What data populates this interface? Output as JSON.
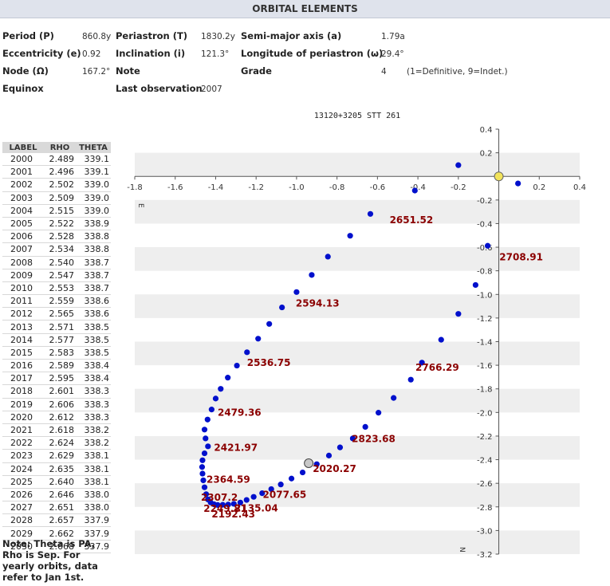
{
  "header": {
    "title": "ORBITAL ELEMENTS"
  },
  "elements": {
    "period": {
      "label": "Period (P)",
      "value": "860.8y"
    },
    "periastron": {
      "label": "Periastron (T)",
      "value": "1830.2y"
    },
    "semimajor": {
      "label": "Semi-major axis (a)",
      "value": "1.79a"
    },
    "eccentricity": {
      "label": "Eccentricity (e)",
      "value": "0.92"
    },
    "inclination": {
      "label": "Inclination (i)",
      "value": "121.3°"
    },
    "longitude": {
      "label": "Longitude of periastron (ω)",
      "value": "29.4°"
    },
    "node": {
      "label": "Node (Ω)",
      "value": "167.2°"
    },
    "note": {
      "label": "Note",
      "value": ""
    },
    "grade": {
      "label": "Grade",
      "value": "4",
      "legend": "(1=Definitive, 9=Indet.)"
    },
    "equinox": {
      "label": "Equinox",
      "value": ""
    },
    "last_obs": {
      "label": "Last observation",
      "value": "2007"
    }
  },
  "yearly": {
    "headers": [
      "LABEL",
      "RHO",
      "THETA"
    ],
    "rows": [
      [
        "2000",
        "2.489",
        "339.1"
      ],
      [
        "2001",
        "2.496",
        "339.1"
      ],
      [
        "2002",
        "2.502",
        "339.0"
      ],
      [
        "2003",
        "2.509",
        "339.0"
      ],
      [
        "2004",
        "2.515",
        "339.0"
      ],
      [
        "2005",
        "2.522",
        "338.9"
      ],
      [
        "2006",
        "2.528",
        "338.8"
      ],
      [
        "2007",
        "2.534",
        "338.8"
      ],
      [
        "2008",
        "2.540",
        "338.7"
      ],
      [
        "2009",
        "2.547",
        "338.7"
      ],
      [
        "2010",
        "2.553",
        "338.7"
      ],
      [
        "2011",
        "2.559",
        "338.6"
      ],
      [
        "2012",
        "2.565",
        "338.6"
      ],
      [
        "2013",
        "2.571",
        "338.5"
      ],
      [
        "2014",
        "2.577",
        "338.5"
      ],
      [
        "2015",
        "2.583",
        "338.5"
      ],
      [
        "2016",
        "2.589",
        "338.4"
      ],
      [
        "2017",
        "2.595",
        "338.4"
      ],
      [
        "2018",
        "2.601",
        "338.3"
      ],
      [
        "2019",
        "2.606",
        "338.3"
      ],
      [
        "2020",
        "2.612",
        "338.3"
      ],
      [
        "2021",
        "2.618",
        "338.2"
      ],
      [
        "2022",
        "2.624",
        "338.2"
      ],
      [
        "2023",
        "2.629",
        "338.1"
      ],
      [
        "2024",
        "2.635",
        "338.1"
      ],
      [
        "2025",
        "2.640",
        "338.1"
      ],
      [
        "2026",
        "2.646",
        "338.0"
      ],
      [
        "2027",
        "2.651",
        "338.0"
      ],
      [
        "2028",
        "2.657",
        "337.9"
      ],
      [
        "2029",
        "2.662",
        "337.9"
      ],
      [
        "2030",
        "2.668",
        "337.9"
      ]
    ]
  },
  "note_text": "Note: Theta is PA, Rho is Sep. For yearly orbits, data refer to Jan 1st.",
  "chart_data": {
    "type": "scatter",
    "title": "13120+3205 STT 261",
    "xlim": [
      -1.8,
      0.4
    ],
    "ylim": [
      -3.2,
      0.4
    ],
    "x_ticks": [
      -1.8,
      -1.6,
      -1.4,
      -1.2,
      -1.0,
      -0.8,
      -0.6,
      -0.4,
      -0.2,
      0.2,
      0.4
    ],
    "x_tick_labels": [
      "-1.8",
      "-1.6",
      "-1.4",
      "-1.2",
      "-1.0",
      "-0.8",
      "-0.6",
      "-0.4",
      "-0.2",
      "0.2",
      "0.4"
    ],
    "y_ticks": [
      0.4,
      0.2,
      -0.2,
      -0.4,
      -0.6,
      -0.8,
      -1.0,
      -1.2,
      -1.4,
      -1.6,
      -1.8,
      -2.0,
      -2.2,
      -2.4,
      -2.6,
      -2.8,
      -3.0,
      -3.2
    ],
    "y_tick_labels": [
      "0.4",
      "0.2",
      "-0.2",
      "-0.4",
      "-0.6",
      "-0.8",
      "-1.0",
      "-1.2",
      "-1.4",
      "-1.6",
      "-1.8",
      "-2.0",
      "-2.2",
      "-2.4",
      "-2.6",
      "-2.8",
      "-3.0",
      "-3.2"
    ],
    "direction_labels": {
      "east": "E",
      "north": "N"
    },
    "grid": "alternating horizontal bands",
    "colors": {
      "orbit": "#0010cc",
      "label": "#8b0000",
      "primary": "#f2e35a",
      "current": "#c8c8c8",
      "band": "#eeeeee"
    },
    "primary": {
      "x": 0,
      "y": 0
    },
    "current_position": {
      "x": -0.94,
      "y": -2.43
    },
    "points": [
      {
        "x": -1.438,
        "y": -2.287
      },
      {
        "x": -1.455,
        "y": -2.346
      },
      {
        "x": -1.465,
        "y": -2.405
      },
      {
        "x": -1.467,
        "y": -2.462
      },
      {
        "x": -1.465,
        "y": -2.518
      },
      {
        "x": -1.461,
        "y": -2.575
      },
      {
        "x": -1.455,
        "y": -2.634
      },
      {
        "x": -1.447,
        "y": -2.692
      },
      {
        "x": -1.438,
        "y": -2.737
      },
      {
        "x": -1.425,
        "y": -2.762
      },
      {
        "x": -1.408,
        "y": -2.778
      },
      {
        "x": -1.39,
        "y": -2.784
      },
      {
        "x": -1.365,
        "y": -2.782
      },
      {
        "x": -1.338,
        "y": -2.78
      },
      {
        "x": -1.31,
        "y": -2.774
      },
      {
        "x": -1.278,
        "y": -2.763
      },
      {
        "x": -1.247,
        "y": -2.741
      },
      {
        "x": -1.212,
        "y": -2.715
      },
      {
        "x": -1.17,
        "y": -2.684
      },
      {
        "x": -1.125,
        "y": -2.649
      },
      {
        "x": -1.078,
        "y": -2.61
      },
      {
        "x": -1.025,
        "y": -2.56
      },
      {
        "x": -0.97,
        "y": -2.508
      },
      {
        "x": -0.9,
        "y": -2.438
      },
      {
        "x": -0.84,
        "y": -2.365
      },
      {
        "x": -0.785,
        "y": -2.296
      },
      {
        "x": -0.722,
        "y": -2.22
      },
      {
        "x": -0.66,
        "y": -2.122
      },
      {
        "x": -0.595,
        "y": -2.002
      },
      {
        "x": -0.52,
        "y": -1.877
      },
      {
        "x": -0.435,
        "y": -1.722
      },
      {
        "x": -0.38,
        "y": -1.578
      },
      {
        "x": -0.285,
        "y": -1.384
      },
      {
        "x": -0.2,
        "y": -1.165
      },
      {
        "x": -0.115,
        "y": -0.92
      },
      {
        "x": -0.055,
        "y": -0.588
      },
      {
        "x": 0.095,
        "y": -0.06
      },
      {
        "x": -0.2,
        "y": 0.095
      },
      {
        "x": -0.415,
        "y": -0.12
      },
      {
        "x": -0.635,
        "y": -0.318
      },
      {
        "x": -0.735,
        "y": -0.503
      },
      {
        "x": -0.845,
        "y": -0.68
      },
      {
        "x": -0.925,
        "y": -0.835
      },
      {
        "x": -1.0,
        "y": -0.98
      },
      {
        "x": -1.072,
        "y": -1.11
      },
      {
        "x": -1.135,
        "y": -1.25
      },
      {
        "x": -1.19,
        "y": -1.375
      },
      {
        "x": -1.245,
        "y": -1.49
      },
      {
        "x": -1.295,
        "y": -1.603
      },
      {
        "x": -1.34,
        "y": -1.705
      },
      {
        "x": -1.375,
        "y": -1.8
      },
      {
        "x": -1.4,
        "y": -1.882
      },
      {
        "x": -1.42,
        "y": -1.975
      },
      {
        "x": -1.44,
        "y": -2.06
      },
      {
        "x": -1.455,
        "y": -2.145
      },
      {
        "x": -1.45,
        "y": -2.22
      }
    ],
    "annotations": [
      {
        "text": "2020.27",
        "x": -0.92,
        "y": -2.505
      },
      {
        "text": "2077.65",
        "x": -1.167,
        "y": -2.723
      },
      {
        "text": "2135.04",
        "x": -1.307,
        "y": -2.839
      },
      {
        "text": "2192.43",
        "x": -1.42,
        "y": -2.888
      },
      {
        "text": "2249.81",
        "x": -1.46,
        "y": -2.843
      },
      {
        "text": "2307.2",
        "x": -1.473,
        "y": -2.747
      },
      {
        "text": "2364.59",
        "x": -1.445,
        "y": -2.594
      },
      {
        "text": "2421.97",
        "x": -1.408,
        "y": -2.327
      },
      {
        "text": "2479.36",
        "x": -1.39,
        "y": -2.027
      },
      {
        "text": "2536.75",
        "x": -1.245,
        "y": -1.605
      },
      {
        "text": "2594.13",
        "x": -1.004,
        "y": -1.103
      },
      {
        "text": "2651.52",
        "x": -0.54,
        "y": -0.397
      },
      {
        "text": "2708.91",
        "x": 0.003,
        "y": -0.711
      },
      {
        "text": "2766.29",
        "x": -0.412,
        "y": -1.646
      },
      {
        "text": "2823.68",
        "x": -0.727,
        "y": -2.25
      }
    ]
  }
}
